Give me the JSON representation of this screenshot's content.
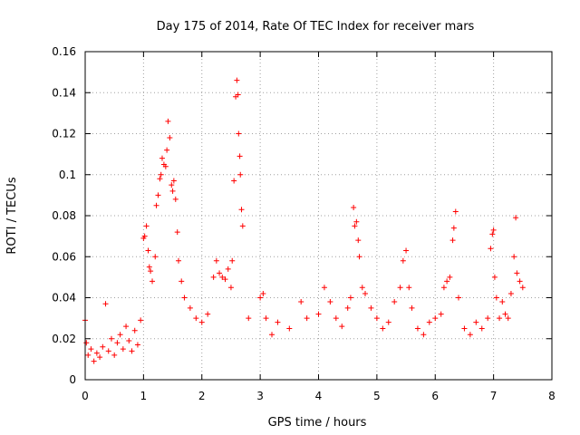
{
  "chart_data": {
    "type": "scatter",
    "title": "Day 175 of 2014, Rate Of TEC Index for receiver mars",
    "xlabel": "GPS time / hours",
    "ylabel": "ROTI / TECUs",
    "xlim": [
      0,
      8
    ],
    "ylim": [
      0,
      0.16
    ],
    "xticks": [
      0,
      1,
      2,
      3,
      4,
      5,
      6,
      7,
      8
    ],
    "yticks": [
      0,
      0.02,
      0.04,
      0.06,
      0.08,
      0.1,
      0.12,
      0.14,
      0.16
    ],
    "xtick_labels": [
      "0",
      "1",
      "2",
      "3",
      "4",
      "5",
      "6",
      "7",
      "8"
    ],
    "ytick_labels": [
      "0",
      "0.02",
      "0.04",
      "0.06",
      "0.08",
      "0.1",
      "0.12",
      "0.14",
      "0.16"
    ],
    "grid": true,
    "marker": "plus",
    "color": "#ff0000",
    "series": [
      {
        "name": "ROTI",
        "points": [
          [
            0.0,
            0.029
          ],
          [
            0.02,
            0.018
          ],
          [
            0.05,
            0.012
          ],
          [
            0.1,
            0.015
          ],
          [
            0.15,
            0.009
          ],
          [
            0.2,
            0.013
          ],
          [
            0.25,
            0.011
          ],
          [
            0.3,
            0.016
          ],
          [
            0.35,
            0.037
          ],
          [
            0.4,
            0.014
          ],
          [
            0.45,
            0.02
          ],
          [
            0.5,
            0.012
          ],
          [
            0.55,
            0.018
          ],
          [
            0.6,
            0.022
          ],
          [
            0.65,
            0.015
          ],
          [
            0.7,
            0.026
          ],
          [
            0.75,
            0.019
          ],
          [
            0.8,
            0.014
          ],
          [
            0.85,
            0.024
          ],
          [
            0.9,
            0.017
          ],
          [
            0.95,
            0.029
          ],
          [
            1.0,
            0.069
          ],
          [
            1.02,
            0.07
          ],
          [
            1.05,
            0.075
          ],
          [
            1.08,
            0.063
          ],
          [
            1.1,
            0.055
          ],
          [
            1.12,
            0.053
          ],
          [
            1.15,
            0.048
          ],
          [
            1.2,
            0.06
          ],
          [
            1.22,
            0.085
          ],
          [
            1.25,
            0.09
          ],
          [
            1.28,
            0.098
          ],
          [
            1.3,
            0.1
          ],
          [
            1.32,
            0.108
          ],
          [
            1.35,
            0.105
          ],
          [
            1.38,
            0.104
          ],
          [
            1.4,
            0.112
          ],
          [
            1.42,
            0.126
          ],
          [
            1.45,
            0.118
          ],
          [
            1.48,
            0.095
          ],
          [
            1.5,
            0.092
          ],
          [
            1.52,
            0.097
          ],
          [
            1.55,
            0.088
          ],
          [
            1.58,
            0.072
          ],
          [
            1.6,
            0.058
          ],
          [
            1.65,
            0.048
          ],
          [
            1.7,
            0.04
          ],
          [
            1.8,
            0.035
          ],
          [
            1.9,
            0.03
          ],
          [
            2.0,
            0.028
          ],
          [
            2.1,
            0.032
          ],
          [
            2.2,
            0.05
          ],
          [
            2.25,
            0.058
          ],
          [
            2.3,
            0.052
          ],
          [
            2.35,
            0.05
          ],
          [
            2.4,
            0.049
          ],
          [
            2.45,
            0.054
          ],
          [
            2.5,
            0.045
          ],
          [
            2.52,
            0.058
          ],
          [
            2.55,
            0.097
          ],
          [
            2.58,
            0.138
          ],
          [
            2.6,
            0.146
          ],
          [
            2.62,
            0.139
          ],
          [
            2.63,
            0.12
          ],
          [
            2.65,
            0.109
          ],
          [
            2.66,
            0.1
          ],
          [
            2.68,
            0.083
          ],
          [
            2.7,
            0.075
          ],
          [
            2.8,
            0.03
          ],
          [
            3.0,
            0.04
          ],
          [
            3.05,
            0.042
          ],
          [
            3.1,
            0.03
          ],
          [
            3.2,
            0.022
          ],
          [
            3.3,
            0.028
          ],
          [
            3.5,
            0.025
          ],
          [
            3.7,
            0.038
          ],
          [
            3.8,
            0.03
          ],
          [
            4.0,
            0.032
          ],
          [
            4.1,
            0.045
          ],
          [
            4.2,
            0.038
          ],
          [
            4.3,
            0.03
          ],
          [
            4.4,
            0.026
          ],
          [
            4.5,
            0.035
          ],
          [
            4.55,
            0.04
          ],
          [
            4.6,
            0.084
          ],
          [
            4.62,
            0.075
          ],
          [
            4.65,
            0.077
          ],
          [
            4.68,
            0.068
          ],
          [
            4.7,
            0.06
          ],
          [
            4.75,
            0.045
          ],
          [
            4.8,
            0.042
          ],
          [
            4.9,
            0.035
          ],
          [
            5.0,
            0.03
          ],
          [
            5.1,
            0.025
          ],
          [
            5.2,
            0.028
          ],
          [
            5.3,
            0.038
          ],
          [
            5.4,
            0.045
          ],
          [
            5.45,
            0.058
          ],
          [
            5.5,
            0.063
          ],
          [
            5.55,
            0.045
          ],
          [
            5.6,
            0.035
          ],
          [
            5.7,
            0.025
          ],
          [
            5.8,
            0.022
          ],
          [
            5.9,
            0.028
          ],
          [
            6.0,
            0.03
          ],
          [
            6.1,
            0.032
          ],
          [
            6.15,
            0.045
          ],
          [
            6.2,
            0.048
          ],
          [
            6.25,
            0.05
          ],
          [
            6.3,
            0.068
          ],
          [
            6.32,
            0.074
          ],
          [
            6.35,
            0.082
          ],
          [
            6.4,
            0.04
          ],
          [
            6.5,
            0.025
          ],
          [
            6.6,
            0.022
          ],
          [
            6.7,
            0.028
          ],
          [
            6.8,
            0.025
          ],
          [
            6.9,
            0.03
          ],
          [
            6.95,
            0.064
          ],
          [
            6.98,
            0.071
          ],
          [
            7.0,
            0.073
          ],
          [
            7.02,
            0.05
          ],
          [
            7.05,
            0.04
          ],
          [
            7.1,
            0.03
          ],
          [
            7.15,
            0.038
          ],
          [
            7.2,
            0.032
          ],
          [
            7.25,
            0.03
          ],
          [
            7.3,
            0.042
          ],
          [
            7.35,
            0.06
          ],
          [
            7.38,
            0.079
          ],
          [
            7.4,
            0.052
          ],
          [
            7.45,
            0.048
          ],
          [
            7.5,
            0.045
          ]
        ]
      }
    ]
  }
}
